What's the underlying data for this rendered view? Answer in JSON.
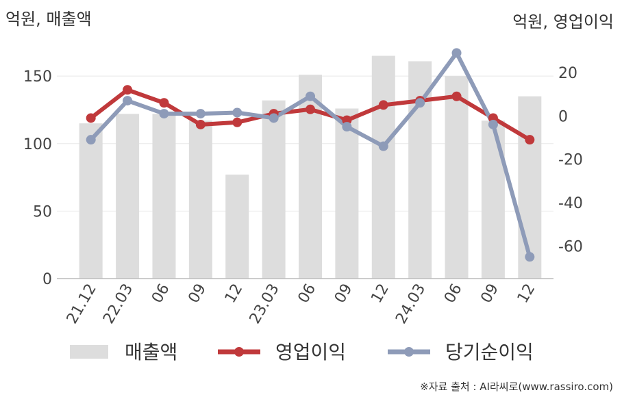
{
  "chart_data": {
    "type": "bar+line",
    "categories": [
      "21.12",
      "22.03",
      "06",
      "09",
      "12",
      "23.03",
      "06",
      "09",
      "12",
      "24.03",
      "06",
      "09",
      "12"
    ],
    "left_axis": {
      "unit_label": "억원, 매출액",
      "ylim": [
        0,
        180
      ],
      "ticks": [
        0,
        50,
        100,
        150
      ]
    },
    "right_axis": {
      "unit_label": "억원, 영업이익",
      "ylim": [
        -75,
        37
      ],
      "ticks": [
        20,
        0,
        -20,
        -40,
        -60
      ]
    },
    "bar_series": {
      "name": "매출액",
      "color": "#dddddd",
      "values": [
        115,
        122,
        122,
        117,
        77,
        132,
        151,
        126,
        165,
        161,
        150,
        117,
        135
      ]
    },
    "line_series": [
      {
        "name": "영업이익",
        "color": "#c0393b",
        "values": [
          -1,
          12,
          6,
          -4,
          -3,
          1,
          3,
          -2,
          5,
          7,
          9,
          -1,
          -11
        ]
      },
      {
        "name": "당기순이익",
        "color": "#8e9bb8",
        "values": [
          -11,
          7,
          1,
          1,
          1.5,
          -1,
          9,
          -5,
          -14,
          6,
          29,
          -4,
          -65
        ]
      }
    ],
    "grid": true,
    "legend_position": "bottom"
  },
  "source_note": "※자료 출처 : AI라씨로(www.rassiro.com)"
}
